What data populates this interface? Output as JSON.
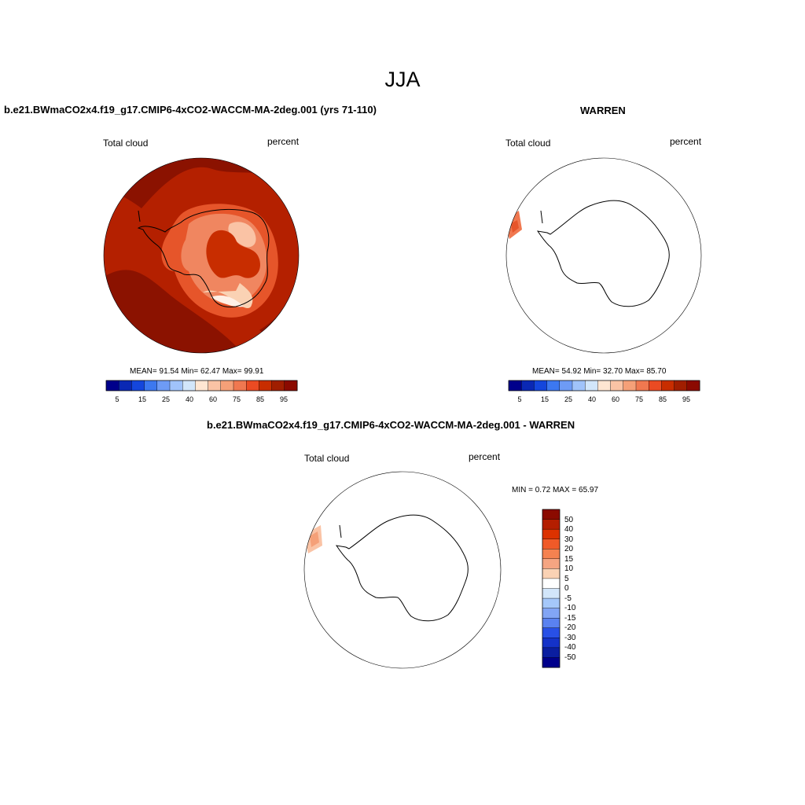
{
  "title": "JJA",
  "panels": [
    {
      "title": "b.e21.BWmaCO2x4.f19_g17.CMIP6-4xCO2-WACCM-MA-2deg.001 (yrs 71-110)",
      "left_label": "Total cloud",
      "right_label": "percent",
      "stats": "MEAN=  91.54  Min=  62.47  Max=  99.91",
      "colorbar_labels": [
        "5",
        "15",
        "25",
        "40",
        "60",
        "75",
        "85",
        "95"
      ]
    },
    {
      "title": "WARREN",
      "left_label": "Total cloud",
      "right_label": "percent",
      "stats": "MEAN=  54.92  Min=  32.70  Max=  85.70",
      "colorbar_labels": [
        "5",
        "15",
        "25",
        "40",
        "60",
        "75",
        "85",
        "95"
      ]
    },
    {
      "title": "b.e21.BWmaCO2x4.f19_g17.CMIP6-4xCO2-WACCM-MA-2deg.001 - WARREN",
      "left_label": "Total cloud",
      "right_label": "percent",
      "stats": "MIN =   0.72 MAX =  65.97",
      "colorbar_labels": [
        "50",
        "40",
        "30",
        "20",
        "15",
        "10",
        "5",
        "0",
        "-5",
        "-10",
        "-15",
        "-20",
        "-30",
        "-40",
        "-50"
      ]
    }
  ],
  "colors": {
    "abs_scale": [
      "#00008b",
      "#0a28b4",
      "#1446dc",
      "#3c78f0",
      "#6e9bf5",
      "#a0c3fa",
      "#d2e6fa",
      "#ffe6d2",
      "#fac3a5",
      "#f5a078",
      "#f07850",
      "#eb4b23",
      "#c82d00",
      "#a01e00",
      "#8b0a00"
    ],
    "diff_scale": [
      "#8b0a00",
      "#b41e00",
      "#dc3200",
      "#f05a28",
      "#f58250",
      "#f5a582",
      "#fad2b4",
      "#ffffff",
      "#d2e6fa",
      "#a5c8fa",
      "#82a5f5",
      "#5a82f0",
      "#2850e6",
      "#1432c8",
      "#0a1ea0",
      "#00008b"
    ]
  }
}
